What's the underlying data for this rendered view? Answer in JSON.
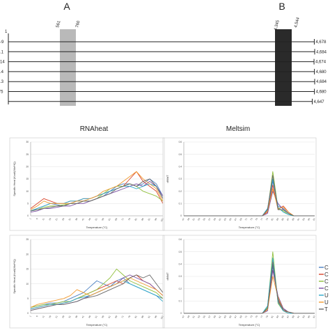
{
  "regions": {
    "A": {
      "letter": "A",
      "start_label": "561",
      "end_label": "760",
      "start": 561,
      "end": 760,
      "color": "#b9b9b9"
    },
    "B": {
      "letter": "B",
      "start_label": "4,345",
      "end_label": "4,544",
      "start": 4345,
      "end": 4544,
      "color": "#2a2a2a"
    }
  },
  "tracks": {
    "top_left_label": "1",
    "rows": [
      {
        "left": "-9",
        "right": "4,678"
      },
      {
        "left": ".1",
        "right": "4,684"
      },
      {
        "left": "14",
        "right": "4,674"
      },
      {
        "left": ".4",
        "right": "4,680"
      },
      {
        "left": ".3",
        "right": "4,684"
      },
      {
        "left": "'5",
        "right": "4,680"
      },
      {
        "left": "",
        "right": "4,647"
      }
    ],
    "genome_max": 4684
  },
  "titles": {
    "left": "RNAheat",
    "right": "Meltsim"
  },
  "legend": {
    "entries": [
      {
        "label": "C",
        "color": "#4a7fc1"
      },
      {
        "label": "C",
        "color": "#d9452b"
      },
      {
        "label": "C",
        "color": "#8fbf3a"
      },
      {
        "label": "C",
        "color": "#7a4ea3"
      },
      {
        "label": "U",
        "color": "#2aa8c9"
      },
      {
        "label": "U",
        "color": "#f29a2e"
      },
      {
        "label": "T",
        "color": "#666666"
      }
    ]
  },
  "chart_data": [
    {
      "type": "line",
      "panel": "rnaheat-a",
      "ylabel": "Specific Heat (Kcal/(Mol*K))",
      "xlabel": "Temperature (°C)",
      "ylim": [
        0,
        30
      ],
      "yticks": [
        0,
        5,
        10,
        15,
        20,
        25,
        30
      ],
      "x": [
        1,
        6,
        11,
        16,
        21,
        26,
        31,
        36,
        41,
        46,
        51,
        56,
        61,
        66,
        71,
        76,
        81,
        86,
        91,
        96,
        101
      ],
      "xticks": [
        "1",
        "6",
        "11",
        "16",
        "21",
        "26",
        "31",
        "36",
        "41",
        "46",
        "51",
        "56",
        "61",
        "66",
        "71",
        "76",
        "81",
        "86",
        "91",
        "96",
        "101"
      ],
      "series": [
        {
          "color": "#4a7fc1",
          "values": [
            2,
            3,
            4,
            5,
            4.5,
            4,
            5,
            6,
            6,
            6,
            7,
            8,
            10,
            12,
            13,
            13,
            12,
            13,
            15,
            13,
            8
          ]
        },
        {
          "color": "#d9452b",
          "values": [
            3,
            5,
            7,
            6,
            5,
            5,
            6,
            6,
            7,
            7,
            8,
            9,
            10,
            11,
            12,
            15,
            18,
            14,
            12,
            10,
            5
          ]
        },
        {
          "color": "#8fbf3a",
          "values": [
            2,
            2.5,
            3.5,
            4,
            4,
            4.5,
            5,
            5,
            6,
            6,
            7,
            9,
            11,
            12,
            12,
            13,
            12,
            10,
            9,
            8,
            6
          ]
        },
        {
          "color": "#7a4ea3",
          "values": [
            1.5,
            2,
            3,
            3,
            3.5,
            4,
            4,
            5,
            5,
            6,
            7,
            8,
            9,
            10,
            11,
            12,
            13,
            12,
            14,
            12,
            8
          ]
        },
        {
          "color": "#2aa8c9",
          "values": [
            2,
            3,
            4,
            5,
            5,
            5,
            6,
            6,
            7,
            7,
            8,
            9,
            10,
            11,
            12,
            12,
            11,
            12,
            13,
            12,
            7
          ]
        },
        {
          "color": "#f29a2e",
          "values": [
            2.5,
            4,
            6,
            5,
            5,
            5,
            5,
            6,
            6,
            7,
            8,
            10,
            11,
            12,
            14,
            16,
            18,
            15,
            13,
            11,
            6
          ]
        },
        {
          "color": "#666666",
          "values": [
            2,
            2.5,
            3,
            3.5,
            4,
            4,
            5,
            5,
            6,
            6,
            7,
            8,
            9,
            11,
            12,
            13,
            12,
            14,
            15,
            12,
            7
          ]
        }
      ]
    },
    {
      "type": "line",
      "panel": "rnaheat-b",
      "ylabel": "Specific Heat (Kcal/(Mol*K))",
      "xlabel": "Temperature (°C)",
      "ylim": [
        0,
        25
      ],
      "yticks": [
        0,
        5,
        10,
        15,
        20,
        25
      ],
      "x": [
        1,
        6,
        11,
        16,
        21,
        26,
        31,
        36,
        41,
        46,
        51,
        56,
        61,
        66,
        71,
        76,
        81,
        86,
        91,
        96,
        101
      ],
      "xticks": [
        "1",
        "6",
        "11",
        "16",
        "21",
        "26",
        "31",
        "36",
        "41",
        "46",
        "51",
        "56",
        "61",
        "66",
        "71",
        "76",
        "81",
        "86",
        "91",
        "96",
        "101"
      ],
      "series": [
        {
          "color": "#4a7fc1",
          "values": [
            2,
            2.5,
            3,
            3.5,
            3.5,
            4,
            5,
            6,
            7,
            9,
            11,
            10,
            9,
            11,
            12,
            10,
            9,
            8,
            7,
            6,
            5
          ]
        },
        {
          "color": "#d9452b",
          "values": [
            1.5,
            2,
            2.5,
            3,
            3,
            3.5,
            4,
            5,
            6,
            7,
            8,
            9,
            10,
            11,
            10,
            12,
            13,
            11,
            10,
            8,
            6
          ]
        },
        {
          "color": "#8fbf3a",
          "values": [
            2,
            2.5,
            3,
            3,
            3.5,
            4,
            4,
            5,
            6,
            7,
            8,
            10,
            12,
            15,
            13,
            11,
            10,
            9,
            8,
            7,
            5
          ]
        },
        {
          "color": "#7a4ea3",
          "values": [
            1,
            1.5,
            2,
            2.5,
            3,
            3,
            3.5,
            4,
            5,
            6,
            7,
            8,
            9,
            10,
            12,
            13,
            12,
            11,
            10,
            8,
            6
          ]
        },
        {
          "color": "#2aa8c9",
          "values": [
            1.5,
            2,
            2.5,
            3,
            3,
            3.5,
            4,
            5,
            5.5,
            6,
            7,
            8,
            9,
            10,
            11,
            10,
            9,
            8,
            7,
            6,
            4
          ]
        },
        {
          "color": "#f29a2e",
          "values": [
            2,
            3,
            3.5,
            4,
            4.5,
            5,
            6,
            8,
            7,
            6,
            7,
            8,
            9,
            10,
            11,
            12,
            11,
            10,
            9,
            8,
            6
          ]
        },
        {
          "color": "#666666",
          "values": [
            1,
            1.5,
            2,
            2.5,
            3,
            3,
            3.5,
            4,
            5,
            5.5,
            6,
            7,
            8,
            9,
            10,
            12,
            13,
            12,
            13,
            10,
            7
          ]
        }
      ]
    },
    {
      "type": "line",
      "panel": "meltsim-a",
      "ylabel": "dM/dT",
      "xlabel": "Temperature (°C)",
      "ylim": [
        0,
        0.6
      ],
      "yticks": [
        0,
        0.1,
        0.2,
        0.3,
        0.4,
        0.5,
        0.6
      ],
      "x": [
        47,
        49,
        51,
        53,
        55,
        57,
        59,
        61,
        63,
        65,
        67,
        69,
        71,
        73,
        75,
        77,
        79,
        81,
        83,
        85,
        87,
        89,
        91,
        93,
        95,
        97
      ],
      "xticks": [
        "47",
        "49",
        "51",
        "53",
        "55",
        "57",
        "59",
        "61",
        "63",
        "65",
        "67",
        "69",
        "71",
        "73",
        "75",
        "77",
        "79",
        "81",
        "83",
        "85",
        "87",
        "89",
        "91",
        "93",
        "95",
        "97"
      ],
      "series": [
        {
          "color": "#4a7fc1",
          "values": [
            0,
            0,
            0,
            0,
            0,
            0,
            0,
            0,
            0,
            0,
            0,
            0,
            0,
            0,
            0,
            0,
            0.05,
            0.28,
            0.08,
            0.06,
            0.02,
            0,
            0,
            0,
            0,
            0
          ]
        },
        {
          "color": "#d9452b",
          "values": [
            0,
            0,
            0,
            0,
            0,
            0,
            0,
            0,
            0,
            0,
            0,
            0,
            0,
            0,
            0,
            0,
            0.03,
            0.25,
            0.05,
            0.08,
            0.03,
            0,
            0,
            0,
            0,
            0
          ]
        },
        {
          "color": "#8fbf3a",
          "values": [
            0,
            0,
            0,
            0,
            0,
            0,
            0,
            0,
            0,
            0,
            0,
            0,
            0,
            0,
            0,
            0,
            0.04,
            0.36,
            0.06,
            0.04,
            0.01,
            0,
            0,
            0,
            0,
            0
          ]
        },
        {
          "color": "#7a4ea3",
          "values": [
            0,
            0,
            0,
            0,
            0,
            0,
            0,
            0,
            0,
            0,
            0,
            0,
            0,
            0,
            0,
            0,
            0.02,
            0.2,
            0.1,
            0.05,
            0.02,
            0,
            0,
            0,
            0,
            0
          ]
        },
        {
          "color": "#2aa8c9",
          "values": [
            0,
            0,
            0,
            0,
            0,
            0,
            0,
            0,
            0,
            0,
            0,
            0,
            0,
            0,
            0,
            0,
            0.06,
            0.3,
            0.07,
            0.03,
            0.01,
            0,
            0,
            0,
            0,
            0
          ]
        },
        {
          "color": "#f29a2e",
          "values": [
            0,
            0,
            0,
            0,
            0,
            0,
            0,
            0,
            0,
            0,
            0,
            0,
            0,
            0,
            0,
            0,
            0.04,
            0.22,
            0.06,
            0.07,
            0.03,
            0,
            0,
            0,
            0,
            0
          ]
        },
        {
          "color": "#666666",
          "values": [
            0,
            0,
            0,
            0,
            0,
            0,
            0,
            0,
            0,
            0,
            0,
            0,
            0,
            0,
            0,
            0,
            0.05,
            0.33,
            0.05,
            0.05,
            0.02,
            0,
            0,
            0,
            0,
            0
          ]
        }
      ]
    },
    {
      "type": "line",
      "panel": "meltsim-b",
      "ylabel": "dM/dT",
      "xlabel": "Temperature (°C)",
      "ylim": [
        0,
        0.6
      ],
      "yticks": [
        0,
        0.1,
        0.2,
        0.3,
        0.4,
        0.5,
        0.6
      ],
      "x": [
        47,
        49,
        51,
        53,
        55,
        57,
        59,
        61,
        63,
        65,
        67,
        69,
        71,
        73,
        75,
        77,
        79,
        81,
        83,
        85,
        87,
        89,
        91,
        93,
        95,
        97
      ],
      "xticks": [
        "47",
        "49",
        "51",
        "53",
        "55",
        "57",
        "59",
        "61",
        "63",
        "65",
        "67",
        "69",
        "71",
        "73",
        "75",
        "77",
        "79",
        "81",
        "83",
        "85",
        "87",
        "89",
        "91",
        "93",
        "95",
        "97"
      ],
      "series": [
        {
          "color": "#4a7fc1",
          "values": [
            0,
            0,
            0,
            0,
            0,
            0,
            0,
            0,
            0,
            0,
            0,
            0,
            0,
            0,
            0,
            0,
            0.04,
            0.38,
            0.12,
            0.03,
            0.01,
            0,
            0,
            0,
            0,
            0
          ]
        },
        {
          "color": "#d9452b",
          "values": [
            0,
            0,
            0,
            0,
            0,
            0,
            0,
            0,
            0,
            0,
            0,
            0,
            0,
            0,
            0,
            0,
            0.03,
            0.42,
            0.1,
            0.02,
            0.01,
            0,
            0,
            0,
            0,
            0
          ]
        },
        {
          "color": "#8fbf3a",
          "values": [
            0,
            0,
            0,
            0,
            0,
            0,
            0,
            0,
            0,
            0,
            0,
            0,
            0,
            0,
            0,
            0,
            0.05,
            0.5,
            0.08,
            0.02,
            0,
            0,
            0,
            0,
            0,
            0
          ]
        },
        {
          "color": "#7a4ea3",
          "values": [
            0,
            0,
            0,
            0,
            0,
            0,
            0,
            0,
            0,
            0,
            0,
            0,
            0,
            0,
            0,
            0,
            0.02,
            0.35,
            0.14,
            0.04,
            0.01,
            0,
            0,
            0,
            0,
            0
          ]
        },
        {
          "color": "#2aa8c9",
          "values": [
            0,
            0,
            0,
            0,
            0,
            0,
            0,
            0,
            0,
            0,
            0,
            0,
            0,
            0,
            0,
            0,
            0.06,
            0.45,
            0.09,
            0.02,
            0,
            0,
            0,
            0,
            0,
            0
          ]
        },
        {
          "color": "#f29a2e",
          "values": [
            0,
            0,
            0,
            0,
            0,
            0,
            0,
            0,
            0,
            0,
            0,
            0,
            0,
            0,
            0,
            0,
            0.03,
            0.3,
            0.13,
            0.03,
            0.01,
            0,
            0,
            0,
            0,
            0
          ]
        },
        {
          "color": "#666666",
          "values": [
            0,
            0,
            0,
            0,
            0,
            0,
            0,
            0,
            0,
            0,
            0,
            0,
            0,
            0,
            0,
            0,
            0.04,
            0.4,
            0.11,
            0.03,
            0.01,
            0,
            0,
            0,
            0,
            0
          ]
        }
      ]
    }
  ]
}
